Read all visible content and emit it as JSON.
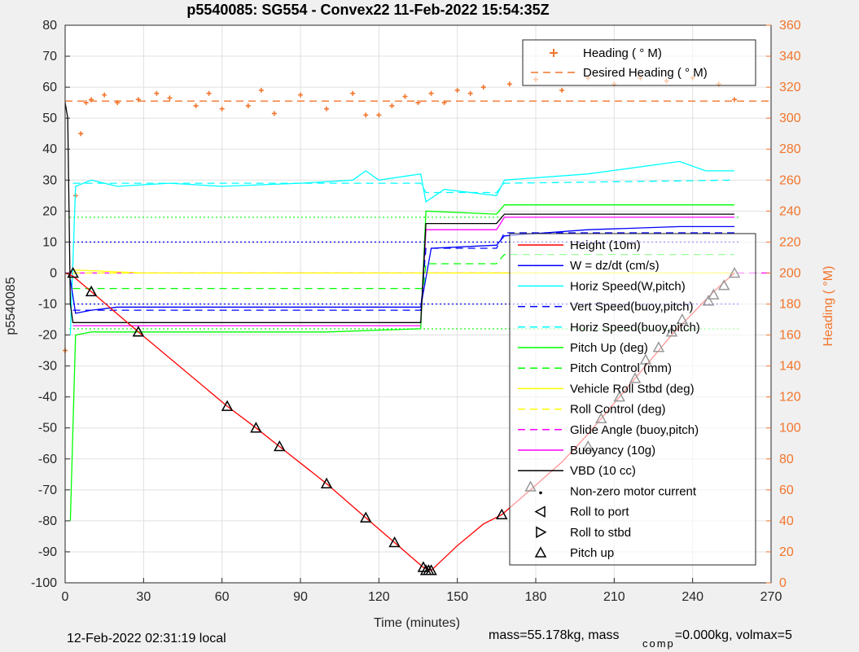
{
  "chart_data": {
    "type": "line",
    "title": "p5540085: SG554 - Convex22 11-Feb-2022 15:54:35Z",
    "xlabel": "Time (minutes)",
    "ylabel": "p5540085",
    "y2label": "Heading (  °M)",
    "xlim": [
      0,
      270
    ],
    "ylim": [
      -100,
      80
    ],
    "y2lim": [
      0,
      360
    ],
    "x_ticks": [
      "0",
      "30",
      "60",
      "90",
      "120",
      "150",
      "180",
      "210",
      "240",
      "270"
    ],
    "y_ticks": [
      "80",
      "70",
      "60",
      "50",
      "40",
      "30",
      "20",
      "10",
      "0",
      "-10",
      "-20",
      "-30",
      "-40",
      "-50",
      "-60",
      "-70",
      "-80",
      "-90",
      "-100"
    ],
    "y2_ticks": [
      "360",
      "340",
      "320",
      "300",
      "280",
      "260",
      "240",
      "220",
      "200",
      "180",
      "160",
      "140",
      "120",
      "100",
      "80",
      "60",
      "40",
      "20",
      "0"
    ],
    "grid": true,
    "heading_legend": [
      {
        "name": "Heading (  ° M)",
        "color": "#f2752c",
        "style": "plus"
      },
      {
        "name": "Desired Heading (  ° M)",
        "color": "#f2752c",
        "style": "dashed"
      }
    ],
    "legend": [
      {
        "name": "Height (10m)",
        "color": "#ff0000",
        "style": "solid"
      },
      {
        "name": "W = dz/dt (cm/s)",
        "color": "#0000ff",
        "style": "solid"
      },
      {
        "name": "Horiz Speed(W,pitch)",
        "color": "#00ffff",
        "style": "solid"
      },
      {
        "name": "Vert Speed(buoy,pitch)",
        "color": "#0000ff",
        "style": "dashed"
      },
      {
        "name": "Horiz Speed(buoy,pitch)",
        "color": "#00ffff",
        "style": "dashed"
      },
      {
        "name": "Pitch Up (deg)",
        "color": "#00ff00",
        "style": "solid"
      },
      {
        "name": "Pitch Control (mm)",
        "color": "#00ff00",
        "style": "dashed"
      },
      {
        "name": "Vehicle Roll Stbd (deg)",
        "color": "#ffff00",
        "style": "solid"
      },
      {
        "name": "Roll Control (deg)",
        "color": "#ffff00",
        "style": "dashed"
      },
      {
        "name": "Glide Angle (buoy,pitch)",
        "color": "#ff00ff",
        "style": "dashed"
      },
      {
        "name": "Buoyancy (10g)",
        "color": "#ff00ff",
        "style": "solid"
      },
      {
        "name": "VBD (10 cc)",
        "color": "#000000",
        "style": "solid"
      },
      {
        "name": "Non-zero motor current",
        "color": "#000000",
        "style": "dot"
      },
      {
        "name": "Roll to port",
        "color": "#000000",
        "style": "tri-left"
      },
      {
        "name": "Roll to stbd",
        "color": "#000000",
        "style": "tri-right"
      },
      {
        "name": "Pitch up",
        "color": "#000000",
        "style": "tri-up"
      }
    ],
    "series": [
      {
        "name": "Height (10m)",
        "color": "#ff0000",
        "axis": "left",
        "x": [
          0,
          3,
          10,
          28,
          62,
          73,
          82,
          100,
          115,
          126,
          137,
          140,
          150,
          160,
          167,
          178,
          190,
          200,
          212,
          222,
          232,
          240,
          248,
          256
        ],
        "y": [
          0,
          -1,
          -6,
          -19,
          -43,
          -50,
          -56,
          -68,
          -79,
          -87,
          -95,
          -96,
          -88,
          -81,
          -78,
          -70,
          -61,
          -52,
          -40,
          -30,
          -20,
          -13,
          -6,
          0
        ]
      },
      {
        "name": "W = dz/dt (cm/s)",
        "color": "#0000ff",
        "axis": "left",
        "x": [
          2,
          4,
          10,
          20,
          30,
          60,
          100,
          130,
          136,
          140,
          165,
          168,
          200,
          235,
          256
        ],
        "y": [
          -2,
          -13,
          -12,
          -11,
          -11,
          -11,
          -11,
          -11,
          -11,
          8,
          9,
          12,
          14,
          15,
          15
        ]
      },
      {
        "name": "Horiz Speed(W,pitch)",
        "color": "#00ffff",
        "axis": "left",
        "x": [
          2,
          4,
          10,
          20,
          40,
          60,
          90,
          110,
          115,
          120,
          136,
          138,
          145,
          165,
          168,
          200,
          235,
          245,
          256
        ],
        "y": [
          -20,
          28,
          30,
          28,
          29,
          28,
          29,
          30,
          33,
          30,
          32,
          23,
          27,
          25,
          30,
          32,
          36,
          33,
          33
        ]
      },
      {
        "name": "Vert Speed(buoy,pitch)",
        "color": "#0000ff",
        "axis": "left",
        "dashed": true,
        "x": [
          3,
          136,
          138,
          165,
          168,
          256
        ],
        "y": [
          -12,
          -12,
          8,
          8,
          13,
          13
        ]
      },
      {
        "name": "Horiz Speed(buoy,pitch)",
        "color": "#00ffff",
        "axis": "left",
        "dashed": true,
        "x": [
          3,
          136,
          138,
          165,
          168,
          256
        ],
        "y": [
          29,
          29,
          26,
          26,
          29,
          30
        ]
      },
      {
        "name": "Pitch Up (deg)",
        "color": "#00ff00",
        "axis": "left",
        "x": [
          2,
          4,
          10,
          30,
          60,
          100,
          136,
          138,
          165,
          168,
          200,
          235,
          256
        ],
        "y": [
          -80,
          -20,
          -19,
          -19,
          -19,
          -19,
          -18,
          20,
          19,
          22,
          22,
          22,
          22
        ]
      },
      {
        "name": "Pitch Control (mm)",
        "color": "#00ff00",
        "axis": "left",
        "dashed": true,
        "x": [
          3,
          137,
          138,
          165,
          168,
          256
        ],
        "y": [
          -5,
          -5,
          3,
          3,
          6,
          6
        ]
      },
      {
        "name": "Vehicle Roll Stbd (deg)",
        "color": "#ffff00",
        "axis": "left",
        "x": [
          3,
          30,
          60,
          100,
          137,
          140,
          170,
          200,
          256
        ],
        "y": [
          1,
          0,
          0,
          0,
          0,
          0,
          0,
          0,
          0
        ]
      },
      {
        "name": "Roll Control (deg)",
        "color": "#ffff00",
        "axis": "left",
        "dashed": true,
        "x": [
          3,
          256
        ],
        "y": [
          0,
          0
        ]
      },
      {
        "name": "Glide Angle (buoy,pitch)",
        "color": "#ff00ff",
        "axis": "left",
        "dashed": true,
        "x": [
          0,
          270
        ],
        "y": [
          0,
          0
        ]
      },
      {
        "name": "Buoyancy (10g)",
        "color": "#ff00ff",
        "axis": "left",
        "x": [
          3,
          136,
          138,
          165,
          168,
          256
        ],
        "y": [
          -17,
          -17,
          14,
          14,
          18,
          18
        ]
      },
      {
        "name": "VBD (10 cc)",
        "color": "#000000",
        "axis": "left",
        "x": [
          0,
          1,
          2,
          3,
          136,
          138,
          165,
          168,
          256
        ],
        "y": [
          55,
          50,
          -10,
          -16,
          -16,
          16,
          16,
          19,
          19
        ]
      },
      {
        "name": "Heading (  ° M)",
        "color": "#f2752c",
        "axis": "right",
        "x": [
          0,
          2,
          4,
          6,
          8,
          10,
          15,
          20,
          28,
          35,
          40,
          50,
          55,
          60,
          70,
          75,
          80,
          90,
          100,
          110,
          115,
          120,
          125,
          130,
          135,
          140,
          145,
          150,
          155,
          160,
          170,
          180,
          190,
          200,
          210,
          220,
          230,
          240,
          250,
          256
        ],
        "y": [
          150,
          200,
          250,
          290,
          310,
          312,
          315,
          310,
          312,
          316,
          313,
          308,
          316,
          306,
          308,
          318,
          303,
          315,
          306,
          316,
          302,
          302,
          308,
          314,
          310,
          316,
          310,
          318,
          316,
          320,
          322,
          325,
          318,
          326,
          322,
          326,
          324,
          326,
          322,
          312
        ]
      },
      {
        "name": "Desired Heading (  ° M)",
        "color": "#f2752c",
        "axis": "right",
        "dashed": true,
        "x": [
          0,
          270
        ],
        "y": [
          311,
          311
        ]
      }
    ],
    "reference_lines": [
      {
        "color": "#0000ff",
        "y": 10
      },
      {
        "color": "#0000ff",
        "y": -10
      },
      {
        "color": "#00ff00",
        "y": 18
      },
      {
        "color": "#00ff00",
        "y": -18
      }
    ],
    "markers": {
      "pitch_up_x": [
        3,
        10,
        28,
        62,
        73,
        82,
        100,
        115,
        126,
        137,
        138,
        139,
        140,
        167,
        178,
        200,
        205,
        212,
        218,
        222,
        227,
        232,
        236,
        246,
        248,
        252,
        256
      ],
      "pitch_up_y": [
        0,
        -6,
        -19,
        -43,
        -50,
        -56,
        -68,
        -79,
        -87,
        -95,
        -96,
        -96,
        -96,
        -78,
        -69,
        -56,
        -47,
        -40,
        -34,
        -28,
        -24,
        -19,
        -15,
        -9,
        -7,
        -4,
        0
      ]
    }
  },
  "footer": {
    "left": "12-Feb-2022 02:31:19 local",
    "right_prefix": "mass=55.178kg, mass",
    "right_sub": "comp",
    "right_suffix": "=0.000kg, volmax=5"
  }
}
